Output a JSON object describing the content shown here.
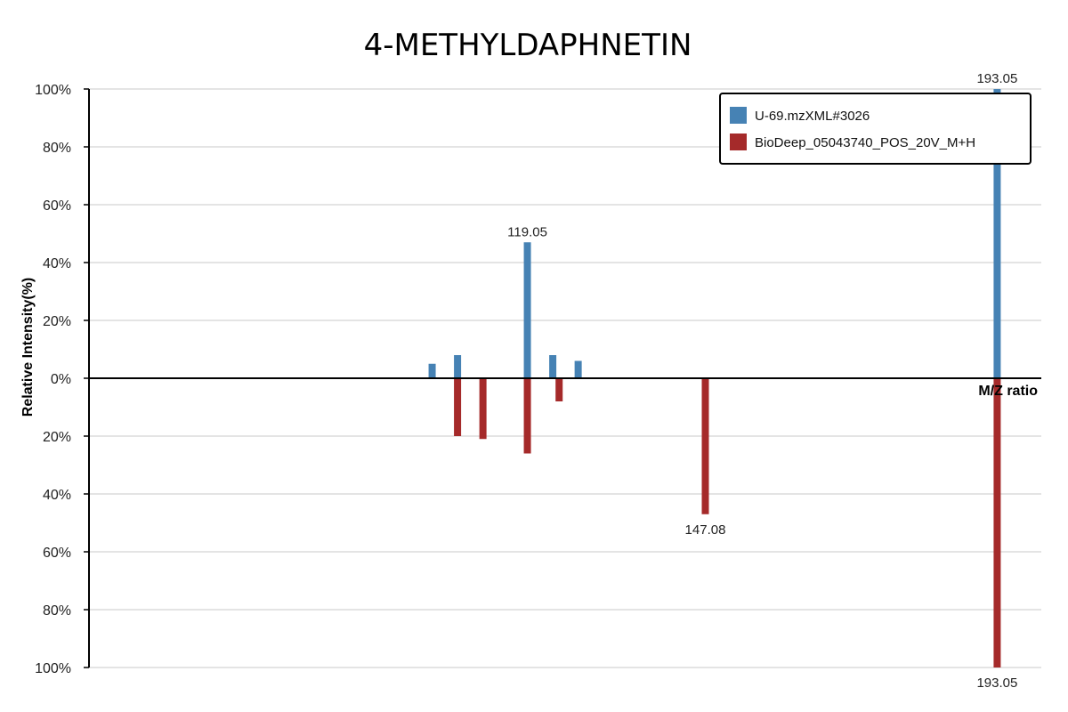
{
  "chart_data": {
    "type": "bar",
    "title": "4-METHYLDAPHNETIN",
    "xlabel": "M/Z ratio",
    "ylabel": "Relative Intensity(%)",
    "ylim": [
      -100,
      100
    ],
    "y_ticks": [
      "100%",
      "80%",
      "60%",
      "40%",
      "20%",
      "0%",
      "20%",
      "40%",
      "60%",
      "80%",
      "100%"
    ],
    "xlim": [
      50,
      200
    ],
    "grid": true,
    "legend_position": "top-right",
    "series": [
      {
        "name": "U-69.mzXML#3026",
        "color": "#4682b4",
        "direction": "up",
        "points": [
          {
            "mz": 104.05,
            "intensity": 5
          },
          {
            "mz": 108.05,
            "intensity": 8
          },
          {
            "mz": 119.05,
            "intensity": 47,
            "label": "119.05"
          },
          {
            "mz": 123.05,
            "intensity": 8
          },
          {
            "mz": 127.05,
            "intensity": 6
          },
          {
            "mz": 193.05,
            "intensity": 100,
            "label": "193.05"
          }
        ]
      },
      {
        "name": "BioDeep_05043740_POS_20V_M+H",
        "color": "#a52a2a",
        "direction": "down",
        "points": [
          {
            "mz": 108.05,
            "intensity": 20
          },
          {
            "mz": 112.05,
            "intensity": 21
          },
          {
            "mz": 119.05,
            "intensity": 26
          },
          {
            "mz": 124.05,
            "intensity": 8
          },
          {
            "mz": 147.08,
            "intensity": 47,
            "label": "147.08"
          },
          {
            "mz": 193.05,
            "intensity": 100,
            "label": "193.05"
          }
        ]
      }
    ]
  }
}
